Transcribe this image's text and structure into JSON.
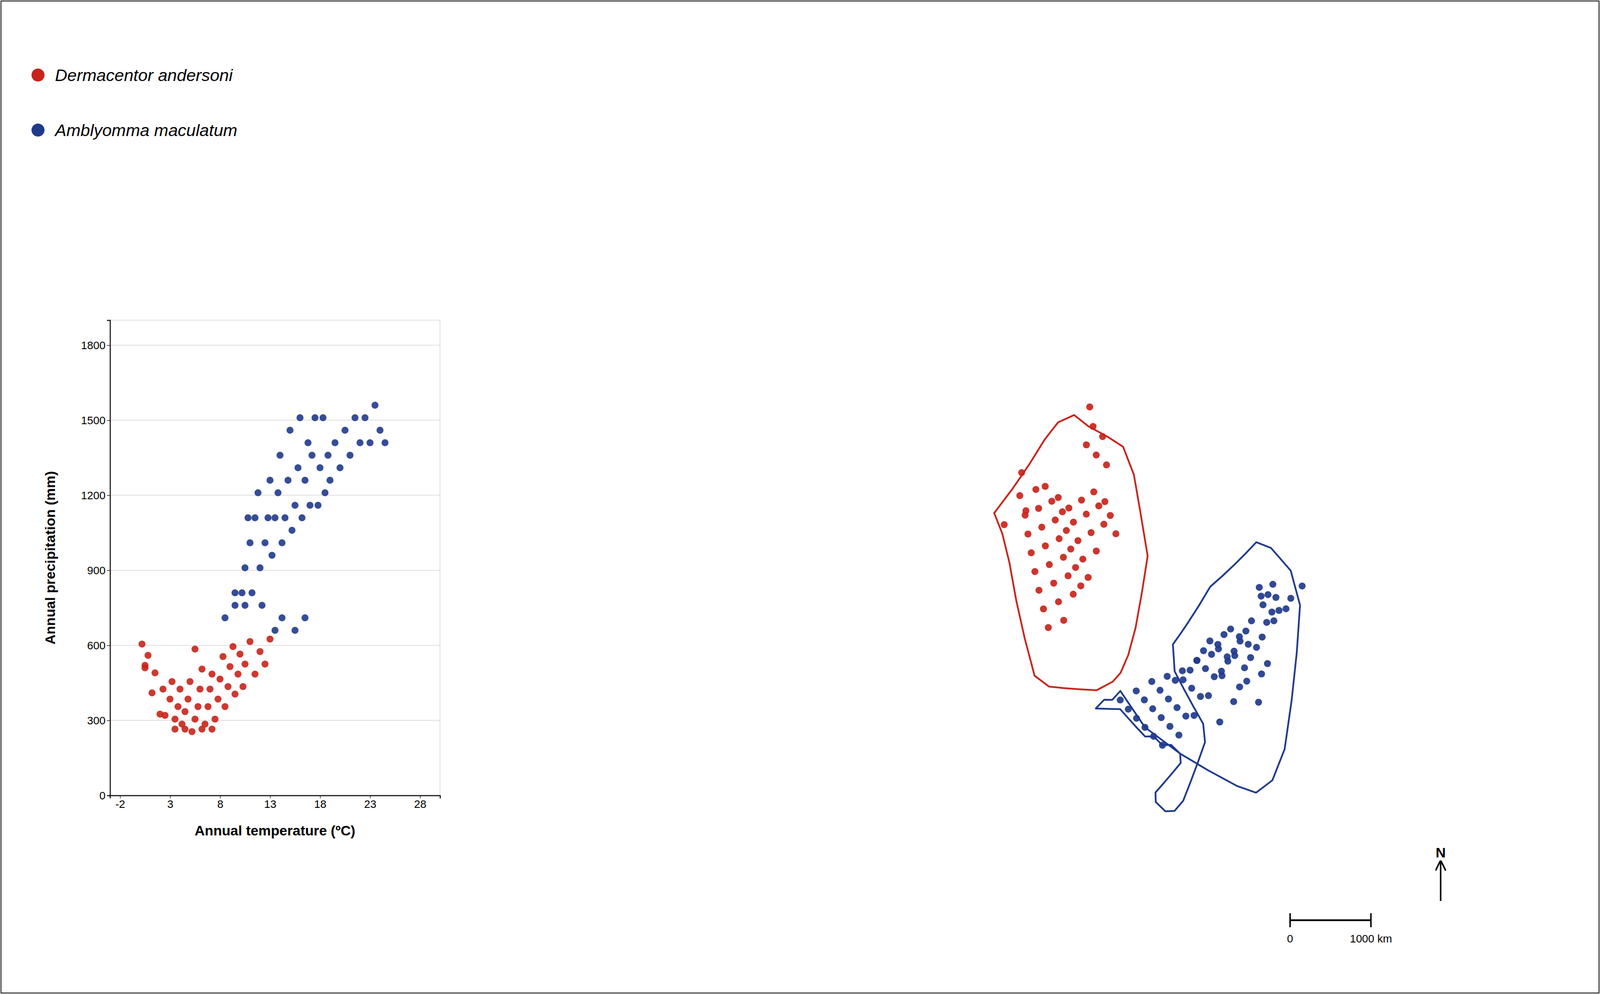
{
  "chart_data": [
    {
      "type": "map",
      "xlim": [
        -168,
        -50
      ],
      "ylim": [
        7,
        83
      ],
      "series": [
        {
          "color": "#c8241a",
          "lon": [
            -114.5,
            -112.0,
            -110.5,
            -108.0,
            -106.0,
            -104.0,
            -102.0,
            -100.0,
            -113.0,
            -111.0,
            -109.0,
            -107.0,
            -105.0,
            -103.0,
            -101.0,
            -99.0,
            -112.0,
            -110.0,
            -108.0,
            -106.0,
            -104.0,
            -102.0,
            -100.0,
            -98.0,
            -111.0,
            -109.0,
            -107.0,
            -105.0,
            -103.0,
            -101.0,
            -110.0,
            -108.0,
            -106.0,
            -104.0,
            -102.0,
            -109.0,
            -107.0,
            -105.0,
            -103.0,
            -108.0,
            -106.0,
            -104.0,
            -107.0,
            -105.0,
            -116.0,
            -113.0,
            -115.0,
            -104.0,
            -102.0,
            -100.0,
            -103.0,
            -101.0,
            -104.0
          ],
          "lat": [
            49.5,
            50.5,
            51.0,
            50.0,
            49.0,
            50.0,
            51.0,
            50.0,
            47.5,
            48.5,
            49.5,
            48.5,
            47.5,
            48.5,
            49.5,
            48.5,
            45.5,
            46.5,
            47.5,
            46.5,
            45.5,
            46.5,
            47.5,
            46.5,
            43.5,
            44.5,
            45.5,
            44.5,
            43.5,
            44.5,
            41.5,
            42.5,
            43.5,
            42.5,
            41.5,
            39.5,
            40.5,
            41.5,
            40.5,
            37.5,
            38.5,
            39.5,
            35.5,
            36.5,
            46.0,
            48.0,
            52.0,
            56.0,
            55.0,
            54.0,
            58.0,
            57.0,
            60.0
          ],
          "outline_lon": [
            -118,
            -116,
            -114,
            -112,
            -110,
            -107,
            -104,
            -100,
            -97,
            -95,
            -94,
            -93,
            -94,
            -95,
            -96,
            -97,
            -98,
            -100,
            -102,
            -104,
            -106,
            -108,
            -110,
            -112,
            -114,
            -116,
            -118
          ],
          "outline_lat": [
            47,
            50,
            53,
            56,
            58,
            59,
            58,
            57,
            56,
            53,
            49,
            44,
            40,
            36,
            33,
            31,
            30,
            29,
            29,
            29,
            29,
            30,
            34,
            38,
            42,
            45,
            47
          ]
        },
        {
          "color": "#1f3a8c",
          "lon": [
            -97.0,
            -95.0,
            -93.0,
            -91.0,
            -89.0,
            -87.0,
            -85.0,
            -83.0,
            -81.0,
            -79.0,
            -77.0,
            -96.0,
            -94.0,
            -92.0,
            -90.0,
            -88.0,
            -86.0,
            -84.0,
            -82.0,
            -80.0,
            -78.0,
            -76.0,
            -95.0,
            -93.0,
            -91.0,
            -89.0,
            -87.0,
            -85.0,
            -83.0,
            -81.0,
            -79.0,
            -77.0,
            -75.0,
            -94.0,
            -92.0,
            -90.0,
            -88.0,
            -86.0,
            -84.0,
            -82.0,
            -80.0,
            -78.0,
            -76.0,
            -93.0,
            -91.0,
            -89.0,
            -87.0,
            -85.0,
            -83.0,
            -81.0,
            -79.0,
            -77.0,
            -92.0,
            -90.0,
            -88.0,
            -86.0,
            -84.0,
            -82.0,
            -80.0,
            -85.0,
            -83.0,
            -81.0,
            -80.0,
            -82.0,
            -84.0,
            -75.0,
            -73.0,
            -71.0,
            -76.0,
            -74.0,
            -77.0,
            -75.0
          ],
          "lat": [
            28.0,
            29.0,
            30.0,
            30.5,
            31.0,
            32.0,
            32.5,
            31.5,
            30.5,
            29.5,
            35.0,
            27.0,
            28.0,
            29.0,
            30.0,
            31.0,
            33.0,
            33.5,
            32.5,
            31.5,
            30.5,
            36.0,
            26.0,
            27.0,
            28.0,
            30.0,
            32.0,
            34.0,
            34.5,
            33.5,
            32.5,
            37.0,
            37.5,
            25.0,
            26.0,
            27.0,
            29.0,
            31.0,
            33.0,
            35.0,
            34.5,
            33.5,
            38.0,
            24.0,
            25.0,
            26.0,
            28.0,
            30.0,
            32.0,
            34.0,
            35.5,
            39.0,
            23.0,
            24.0,
            26.0,
            28.0,
            30.0,
            32.0,
            33.0,
            25.0,
            27.0,
            29.0,
            26.5,
            28.5,
            30.5,
            36.0,
            37.0,
            38.0,
            35.0,
            36.0,
            38.0,
            39.0
          ],
          "outline_lon": [
            -97,
            -94,
            -90,
            -87,
            -84,
            -82,
            -80,
            -78,
            -76,
            -74,
            -72,
            -72,
            -74,
            -76,
            -78,
            -80,
            -82,
            -84,
            -86,
            -88,
            -89,
            -90,
            -90,
            -89,
            -88,
            -87,
            -87,
            -88,
            -89,
            -90,
            -91,
            -92,
            -93,
            -93,
            -92,
            -91,
            -90,
            -90,
            -91,
            -92,
            -93,
            -94,
            -95,
            -96,
            -97,
            -98,
            -99,
            -100,
            -99,
            -98,
            -97
          ],
          "outline_lat": [
            29,
            25,
            22,
            20,
            18,
            17,
            18,
            21,
            26,
            31,
            36,
            40,
            43,
            44,
            43,
            42,
            41,
            40,
            38,
            36,
            35,
            34,
            31,
            29,
            27,
            25,
            23,
            21,
            19,
            17,
            16,
            16,
            17,
            18,
            19,
            20,
            21,
            22,
            23,
            23,
            24,
            24,
            25,
            26,
            27,
            27,
            27,
            27,
            28,
            28,
            29
          ]
        }
      ],
      "north_label": "N",
      "scale_ticks": [
        0,
        {
          "value": 1000,
          "label": "1000 km"
        }
      ]
    },
    {
      "type": "scatter",
      "xlabel": "Annual temperature (ºC)",
      "ylabel": "Annual precipitation (mm)",
      "xlim": [
        -3,
        30
      ],
      "ylim": [
        0,
        1900
      ],
      "xticks": [
        -2,
        3,
        8,
        13,
        18,
        23,
        28
      ],
      "yticks": [
        0,
        300,
        600,
        900,
        1200,
        1500,
        1800
      ],
      "grid": true,
      "series": [
        {
          "name": "Dermacentor andersoni",
          "color": "#c8241a",
          "x": [
            0.5,
            0.8,
            1.2,
            1.5,
            2.0,
            2.3,
            2.5,
            3.0,
            3.2,
            3.5,
            3.8,
            4.0,
            4.2,
            4.5,
            4.8,
            5.0,
            5.2,
            5.5,
            5.8,
            6.0,
            6.2,
            6.5,
            6.8,
            7.0,
            7.2,
            7.5,
            7.8,
            8.0,
            8.3,
            8.5,
            8.8,
            9.0,
            9.3,
            9.5,
            9.8,
            10.0,
            10.3,
            10.5,
            11.0,
            11.5,
            12.0,
            12.5,
            13.0,
            5.5,
            6.2,
            7.2,
            3.5,
            4.5,
            0.2,
            0.5
          ],
          "values": [
            520,
            560,
            410,
            490,
            325,
            425,
            320,
            385,
            455,
            305,
            355,
            425,
            285,
            335,
            385,
            455,
            255,
            305,
            355,
            425,
            505,
            285,
            355,
            425,
            485,
            305,
            385,
            465,
            555,
            355,
            435,
            515,
            595,
            405,
            485,
            565,
            435,
            525,
            615,
            485,
            575,
            525,
            625,
            585,
            265,
            265,
            265,
            265,
            605,
            510
          ]
        },
        {
          "name": "Amblyomma maculatum",
          "color": "#1f3a8c",
          "x": [
            8.5,
            9.5,
            10.2,
            10.8,
            11.0,
            11.5,
            11.8,
            12.0,
            12.5,
            12.8,
            13.0,
            13.2,
            13.5,
            13.8,
            14.0,
            14.2,
            14.5,
            14.8,
            15.0,
            15.2,
            15.5,
            15.8,
            16.0,
            16.2,
            16.5,
            16.8,
            17.0,
            17.2,
            17.5,
            17.8,
            18.0,
            18.3,
            18.5,
            18.8,
            19.0,
            19.5,
            20.0,
            20.5,
            21.0,
            21.5,
            22.0,
            22.5,
            23.0,
            23.5,
            24.0,
            24.5,
            13.5,
            14.2,
            15.5,
            16.5,
            10.5,
            11.2,
            12.2,
            9.5,
            10.5
          ],
          "values": [
            710,
            760,
            810,
            1110,
            1010,
            1110,
            1210,
            910,
            1010,
            1110,
            1260,
            960,
            1110,
            1210,
            1360,
            1010,
            1110,
            1260,
            1460,
            1060,
            1160,
            1310,
            1510,
            1110,
            1260,
            1410,
            1160,
            1360,
            1510,
            1160,
            1310,
            1510,
            1210,
            1360,
            1260,
            1410,
            1310,
            1460,
            1360,
            1510,
            1410,
            1510,
            1410,
            1560,
            1460,
            1410,
            660,
            710,
            660,
            710,
            760,
            810,
            760,
            810,
            910
          ]
        }
      ]
    }
  ]
}
